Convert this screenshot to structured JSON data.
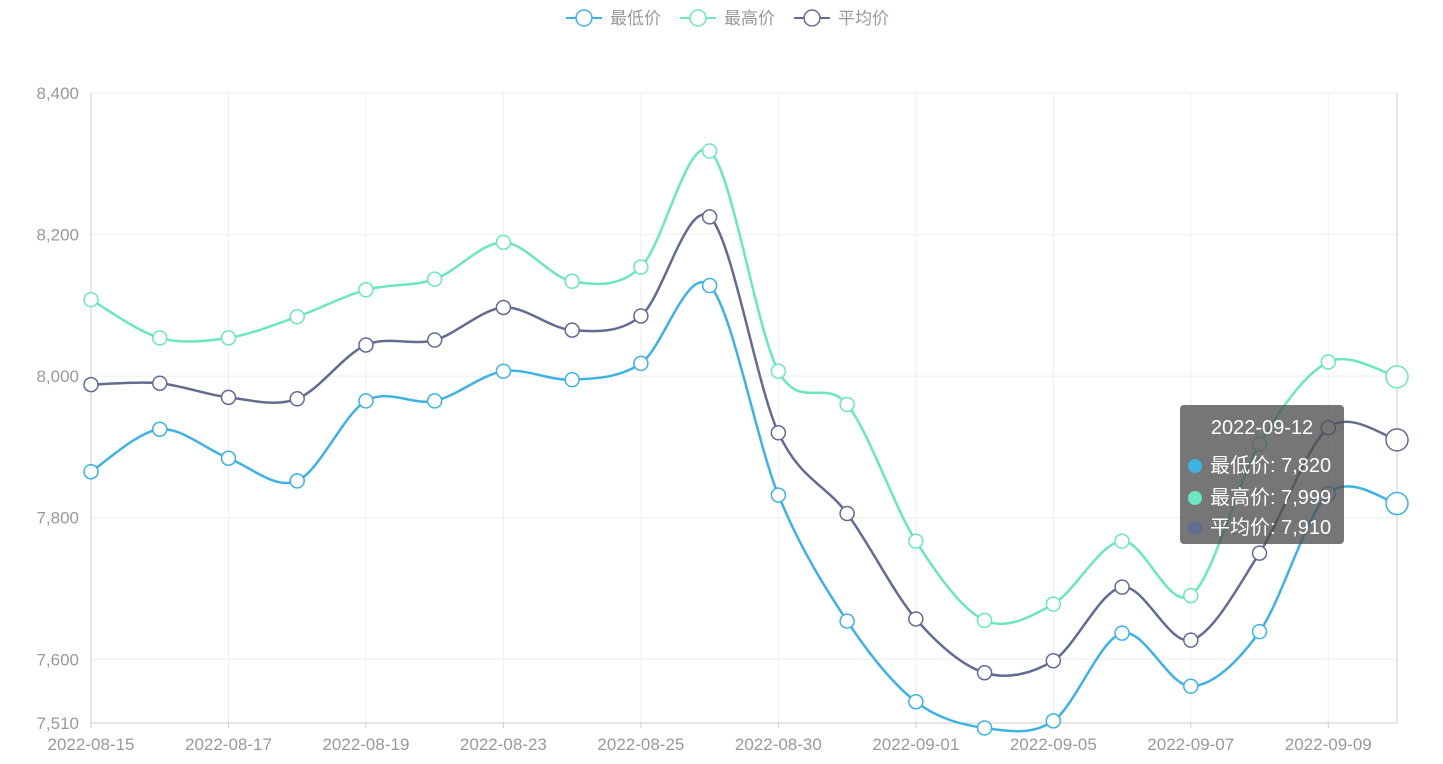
{
  "chart_data": {
    "type": "line",
    "x": [
      "2022-08-15",
      "2022-08-16",
      "2022-08-17",
      "2022-08-18",
      "2022-08-19",
      "2022-08-22",
      "2022-08-23",
      "2022-08-24",
      "2022-08-25",
      "2022-08-26",
      "2022-08-30",
      "2022-08-31",
      "2022-09-01",
      "2022-09-02",
      "2022-09-05",
      "2022-09-06",
      "2022-09-07",
      "2022-09-08",
      "2022-09-09",
      "2022-09-12"
    ],
    "xtick_labels": [
      "2022-08-15",
      "2022-08-17",
      "2022-08-19",
      "2022-08-23",
      "2022-08-25",
      "2022-08-30",
      "2022-09-01",
      "2022-09-05",
      "2022-09-07",
      "2022-09-09"
    ],
    "series": [
      {
        "name": "最低价",
        "color": "#3fb1e3",
        "values": [
          7865,
          7925,
          7884,
          7852,
          7965,
          7965,
          8007,
          7995,
          8018,
          8128,
          7832,
          7654,
          7540,
          7503,
          7513,
          7637,
          7562,
          7639,
          7834,
          7820
        ]
      },
      {
        "name": "最高价",
        "color": "#6be6c1",
        "values": [
          8108,
          8054,
          8054,
          8084,
          8122,
          8137,
          8189,
          8134,
          8154,
          8318,
          8007,
          7960,
          7767,
          7655,
          7678,
          7767,
          7690,
          7904,
          8020,
          7999
        ]
      },
      {
        "name": "平均价",
        "color": "#626c91",
        "values": [
          7988,
          7990,
          7970,
          7968,
          8044,
          8051,
          8097,
          8065,
          8085,
          8225,
          7920,
          7806,
          7657,
          7581,
          7598,
          7702,
          7627,
          7750,
          7927,
          7910
        ]
      }
    ],
    "ylim": [
      7510,
      8400
    ],
    "yticks": [
      "7,510",
      "7,600",
      "7,800",
      "8,000",
      "8,200",
      "8,400"
    ],
    "ytick_values": [
      7510,
      7600,
      7800,
      8000,
      8200,
      8400
    ],
    "grid": true,
    "legend": "top-center"
  },
  "tooltip": {
    "title": "2022-09-12",
    "rows": [
      {
        "label": "最低价: 7,820",
        "color": "#3fb1e3"
      },
      {
        "label": "最高价: 7,999",
        "color": "#6be6c1"
      },
      {
        "label": "平均价: 7,910",
        "color": "#626c91"
      }
    ]
  }
}
